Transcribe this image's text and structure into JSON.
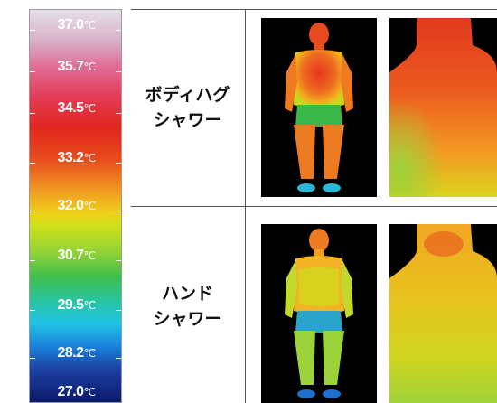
{
  "scale": {
    "unit": "℃",
    "ticks": [
      "37.0",
      "35.7",
      "34.5",
      "33.2",
      "32.0",
      "30.7",
      "29.5",
      "28.2",
      "27.0"
    ]
  },
  "rows": [
    {
      "label_line1": "ボディハグ",
      "label_line2": "シャワー"
    },
    {
      "label_line1": "ハンド",
      "label_line2": "シャワー"
    }
  ]
}
